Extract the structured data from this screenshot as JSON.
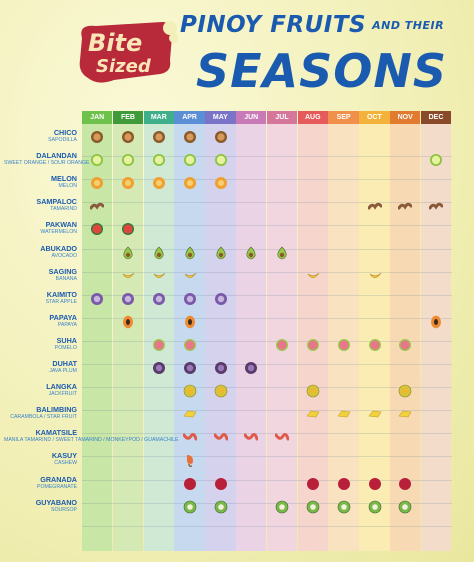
{
  "logo": {
    "line1": "Bite",
    "line2": "Sized"
  },
  "title": {
    "line1": "PINOY FRUITS",
    "line1_small": "AND THEIR",
    "line2": "SEASONS"
  },
  "months": [
    "JAN",
    "FEB",
    "MAR",
    "APR",
    "MAY",
    "JUN",
    "JUL",
    "AUG",
    "SEP",
    "OCT",
    "NOV",
    "DEC"
  ],
  "month_colors": {
    "header": [
      "#6ec14a",
      "#3f9a3a",
      "#3fae8a",
      "#5a8fd6",
      "#7a74c9",
      "#c87ab6",
      "#d4779a",
      "#e55a5a",
      "#f0904a",
      "#f3b23a",
      "#e07b30",
      "#8a4a2a"
    ],
    "band": [
      "#c8e6a6",
      "#d4e9b4",
      "#cfe9d5",
      "#c7d9ee",
      "#d4d2ec",
      "#ebd3e6",
      "#f1d6e0",
      "#f6d6cc",
      "#f9e2bf",
      "#fbecb4",
      "#f7d9b3",
      "#f3dcc9"
    ]
  },
  "fruits": [
    {
      "name": "CHICO",
      "sub": "SAPODILLA",
      "icon": "chico-icon",
      "color": "#8b5a2b",
      "months": [
        1,
        2,
        3,
        4,
        5
      ]
    },
    {
      "name": "DALANDAN",
      "sub": "SWEET ORANGE / SOUR ORANGE",
      "icon": "dalandan-icon",
      "color": "#8ac43f",
      "months": [
        1,
        2,
        3,
        4,
        5,
        12
      ]
    },
    {
      "name": "MELON",
      "sub": "MELON",
      "icon": "melon-icon",
      "color": "#f0a030",
      "months": [
        1,
        2,
        3,
        4,
        5
      ]
    },
    {
      "name": "SAMPALOC",
      "sub": "TAMARIND",
      "icon": "sampaloc-icon",
      "color": "#8a5a3a",
      "months": [
        1,
        10,
        11,
        12
      ]
    },
    {
      "name": "PAKWAN",
      "sub": "WATERMELON",
      "icon": "pakwan-icon",
      "color": "#e0463c",
      "months": [
        1,
        2
      ]
    },
    {
      "name": "ABUKADO",
      "sub": "AVOCADO",
      "icon": "abukado-icon",
      "color": "#9ac94a",
      "months": [
        2,
        3,
        4,
        5,
        6,
        7
      ]
    },
    {
      "name": "SAGING",
      "sub": "BANANA",
      "icon": "saging-icon",
      "color": "#f2c83a",
      "months": [
        2,
        3,
        4,
        8,
        10
      ]
    },
    {
      "name": "KAIMITO",
      "sub": "STAR APPLE",
      "icon": "kaimito-icon",
      "color": "#7a5aa8",
      "months": [
        1,
        2,
        3,
        4,
        5
      ]
    },
    {
      "name": "PAPAYA",
      "sub": "PAPAYA",
      "icon": "papaya-icon",
      "color": "#f08a30",
      "months": [
        2,
        4,
        12
      ]
    },
    {
      "name": "SUHA",
      "sub": "POMELO",
      "icon": "suha-icon",
      "color": "#e8768a",
      "months": [
        3,
        4,
        7,
        8,
        9,
        10,
        11
      ]
    },
    {
      "name": "DUHAT",
      "sub": "JAVA PLUM",
      "icon": "duhat-icon",
      "color": "#5a3a6a",
      "months": [
        3,
        4,
        5,
        6
      ]
    },
    {
      "name": "LANGKA",
      "sub": "JACKFRUIT",
      "icon": "langka-icon",
      "color": "#d8c23a",
      "months": [
        4,
        5,
        8,
        11
      ]
    },
    {
      "name": "BALIMBING",
      "sub": "CARAMBOLA / STAR FRUIT",
      "icon": "balimbing-icon",
      "color": "#f2d23a",
      "months": [
        4,
        8,
        9,
        10,
        11
      ]
    },
    {
      "name": "KAMATSILE",
      "sub": "MANILA TAMARIND / SWEET TAMARIND / MONKEYPOD / GUAMACHILE",
      "icon": "kamatsile-icon",
      "color": "#e05a4a",
      "months": [
        4,
        5,
        6,
        7
      ]
    },
    {
      "name": "KASUY",
      "sub": "CASHEW",
      "icon": "kasuy-icon",
      "color": "#e8703a",
      "months": [
        4
      ]
    },
    {
      "name": "GRANADA",
      "sub": "POMEGRANATE",
      "icon": "granada-icon",
      "color": "#b8203a",
      "months": [
        4,
        5,
        8,
        9,
        10,
        11
      ]
    },
    {
      "name": "GUYABANO",
      "sub": "SOURSOP",
      "icon": "guyabano-icon",
      "color": "#7ab84a",
      "months": [
        4,
        5,
        7,
        8,
        9,
        10,
        11
      ]
    }
  ]
}
